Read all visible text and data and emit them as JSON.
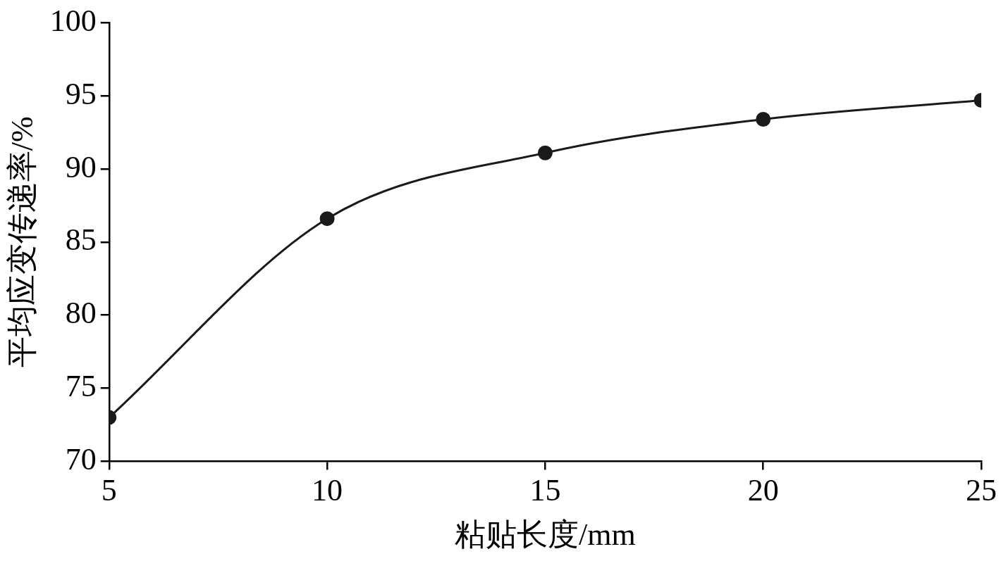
{
  "chart_data": {
    "type": "line",
    "xlabel": "粘贴长度/mm",
    "ylabel": "平均应变传递率/%",
    "x": [
      5,
      10,
      15,
      20,
      25
    ],
    "values": [
      73.0,
      86.6,
      91.1,
      93.4,
      94.7
    ],
    "color": "#1a1a1a",
    "xlim": [
      5,
      25
    ],
    "xticks": [
      5,
      10,
      15,
      20,
      25
    ],
    "ylim": [
      70,
      100
    ],
    "yticks": [
      70,
      75,
      80,
      85,
      90,
      95,
      100
    ],
    "grid": false,
    "legend": false,
    "marker": "circle",
    "line_style": "solid"
  }
}
